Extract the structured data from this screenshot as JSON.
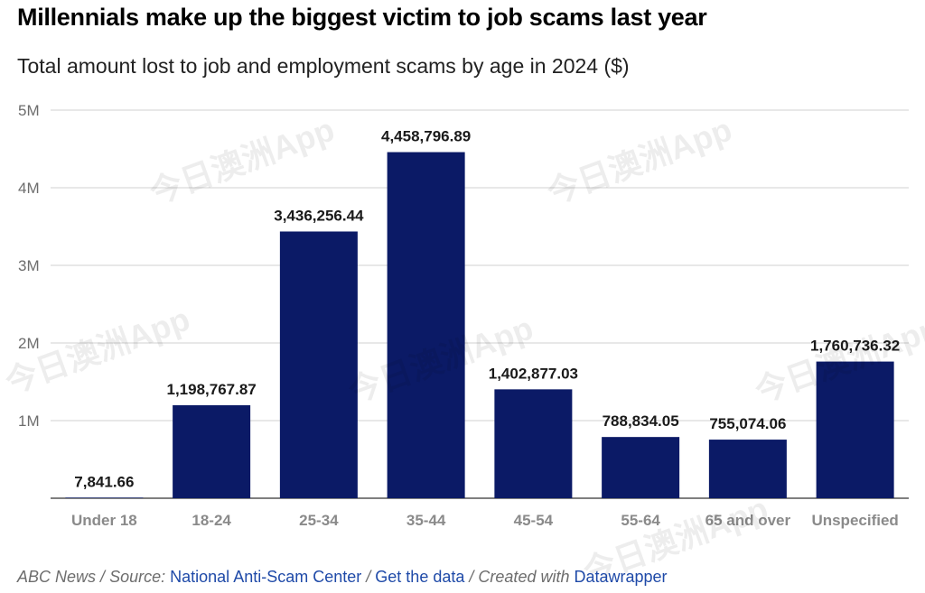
{
  "title": "Millennials make up the biggest victim to job scams last year",
  "subtitle": "Total amount lost to job and employment scams by age in 2024 ($)",
  "chart_data": {
    "type": "bar",
    "title": "Millennials make up the biggest victim to job scams last year",
    "subtitle": "Total amount lost to job and employment scams by age in 2024 ($)",
    "categories": [
      "Under 18",
      "18-24",
      "25-34",
      "35-44",
      "45-54",
      "55-64",
      "65 and over",
      "Unspecified"
    ],
    "values": [
      7841.66,
      1198767.87,
      3436256.44,
      4458796.89,
      1402877.03,
      788834.05,
      755074.06,
      1760736.32
    ],
    "value_labels": [
      "7,841.66",
      "1,198,767.87",
      "3,436,256.44",
      "4,458,796.89",
      "1,402,877.03",
      "788,834.05",
      "755,074.06",
      "1,760,736.32"
    ],
    "ylim": [
      0,
      5000000
    ],
    "yticks": [
      0,
      1000000,
      2000000,
      3000000,
      4000000,
      5000000
    ],
    "ytick_labels": [
      "",
      "1M",
      "2M",
      "3M",
      "4M",
      "5M"
    ],
    "xlabel": "",
    "ylabel": "",
    "bar_color": "#0b1a66",
    "grid": true
  },
  "footer": {
    "outlet": "ABC News",
    "source_prefix": "Source:",
    "source_link": "National Anti-Scam Center",
    "data_link": "Get the data",
    "created_prefix": "Created with",
    "created_link": "Datawrapper",
    "separator": "/"
  },
  "watermark_text": "今日澳洲App"
}
